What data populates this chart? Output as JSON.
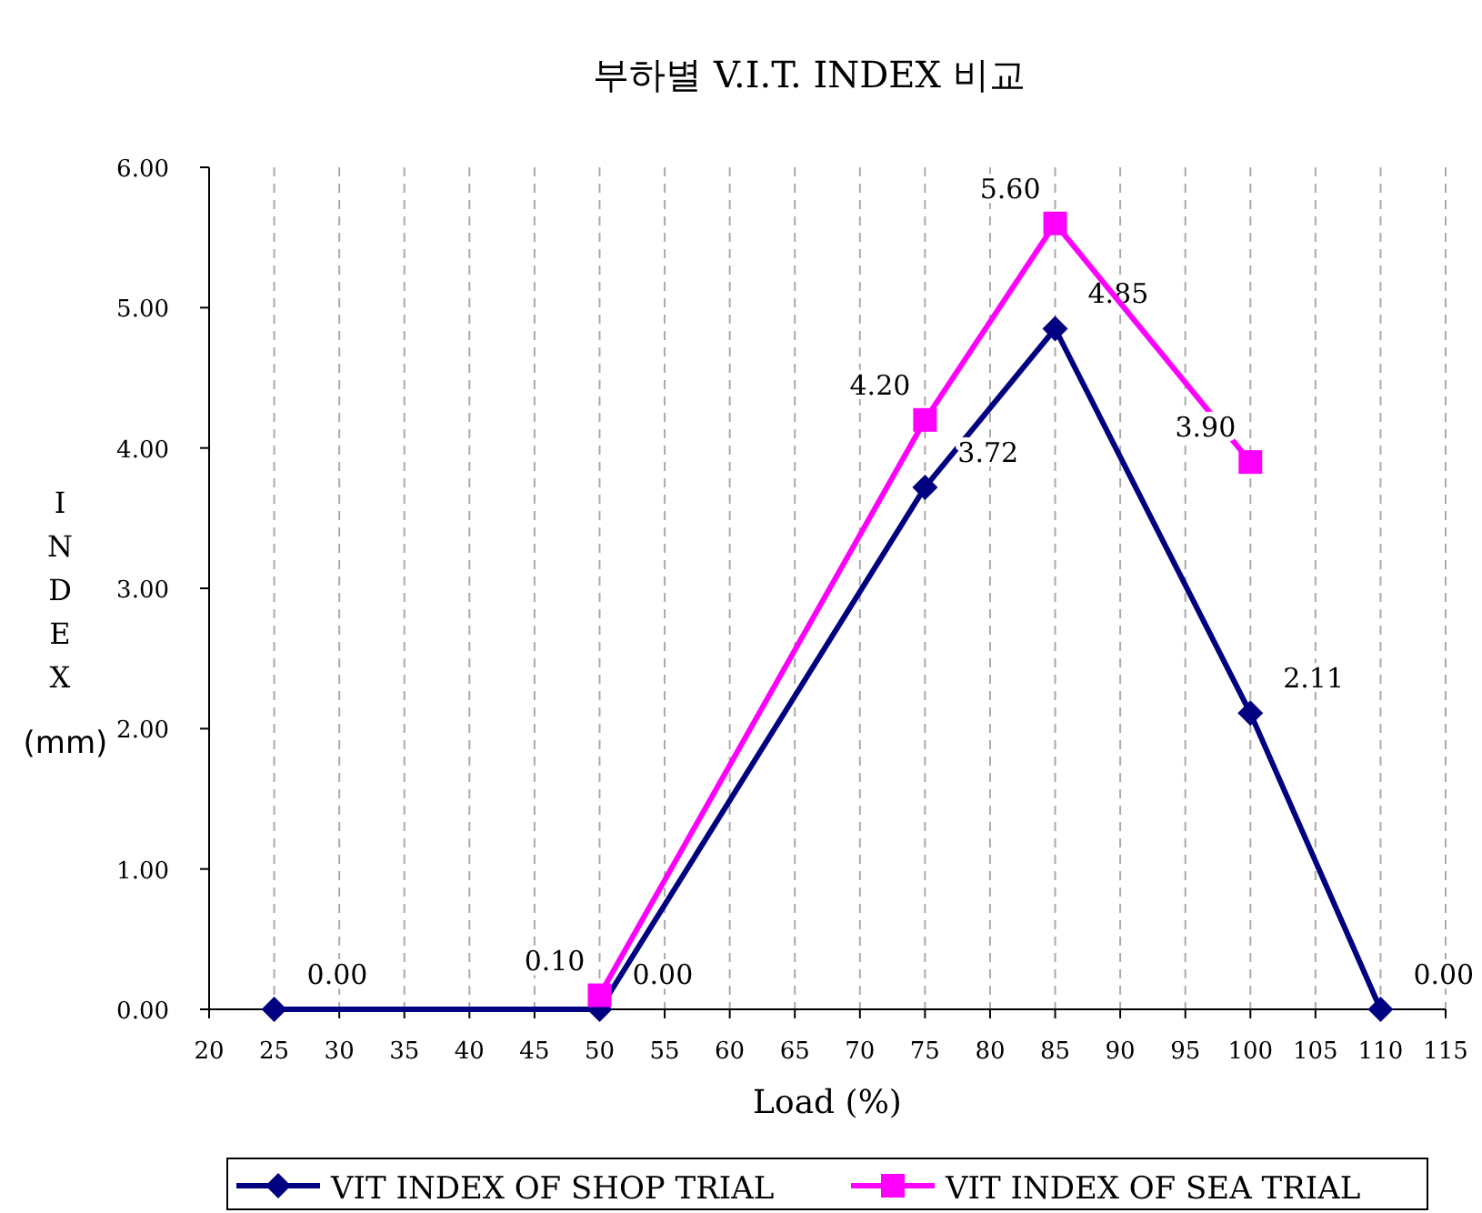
{
  "chart_data": {
    "type": "line",
    "title": "부하별 V.I.T. INDEX 비교",
    "xlabel": "Load (%)",
    "ylabel": "INDEX (mm)",
    "xlim": [
      20,
      115
    ],
    "xticks": [
      20,
      25,
      30,
      35,
      40,
      45,
      50,
      55,
      60,
      65,
      70,
      75,
      80,
      85,
      90,
      95,
      100,
      105,
      110,
      115
    ],
    "ylim": [
      0,
      6
    ],
    "yticks": [
      {
        "value": 0,
        "label": "0.00"
      },
      {
        "value": 1,
        "label": "1.00"
      },
      {
        "value": 2,
        "label": "2.00"
      },
      {
        "value": 3,
        "label": "3.00"
      },
      {
        "value": 4,
        "label": "4.00"
      },
      {
        "value": 5,
        "label": "5.00"
      },
      {
        "value": 6,
        "label": "6.00"
      }
    ],
    "grid": "x",
    "legend": "bottom",
    "series": [
      {
        "name": "VIT INDEX OF SHOP TRIAL",
        "color": "#000080",
        "marker": "diamond",
        "x": [
          25,
          50,
          75,
          85,
          100,
          110
        ],
        "values": [
          0,
          0,
          3.72,
          4.85,
          2.11,
          0
        ],
        "value_labels": [
          "0.00",
          "0.00",
          "3.72",
          "4.85",
          "2.11",
          "0.00"
        ]
      },
      {
        "name": "VIT INDEX OF SEA TRIAL",
        "color": "#ff00ff",
        "marker": "square",
        "x": [
          50,
          75,
          85,
          100
        ],
        "values": [
          0.1,
          4.2,
          5.6,
          3.9
        ],
        "value_labels": [
          "0.10",
          "4.20",
          "5.60",
          "3.90"
        ]
      }
    ]
  }
}
